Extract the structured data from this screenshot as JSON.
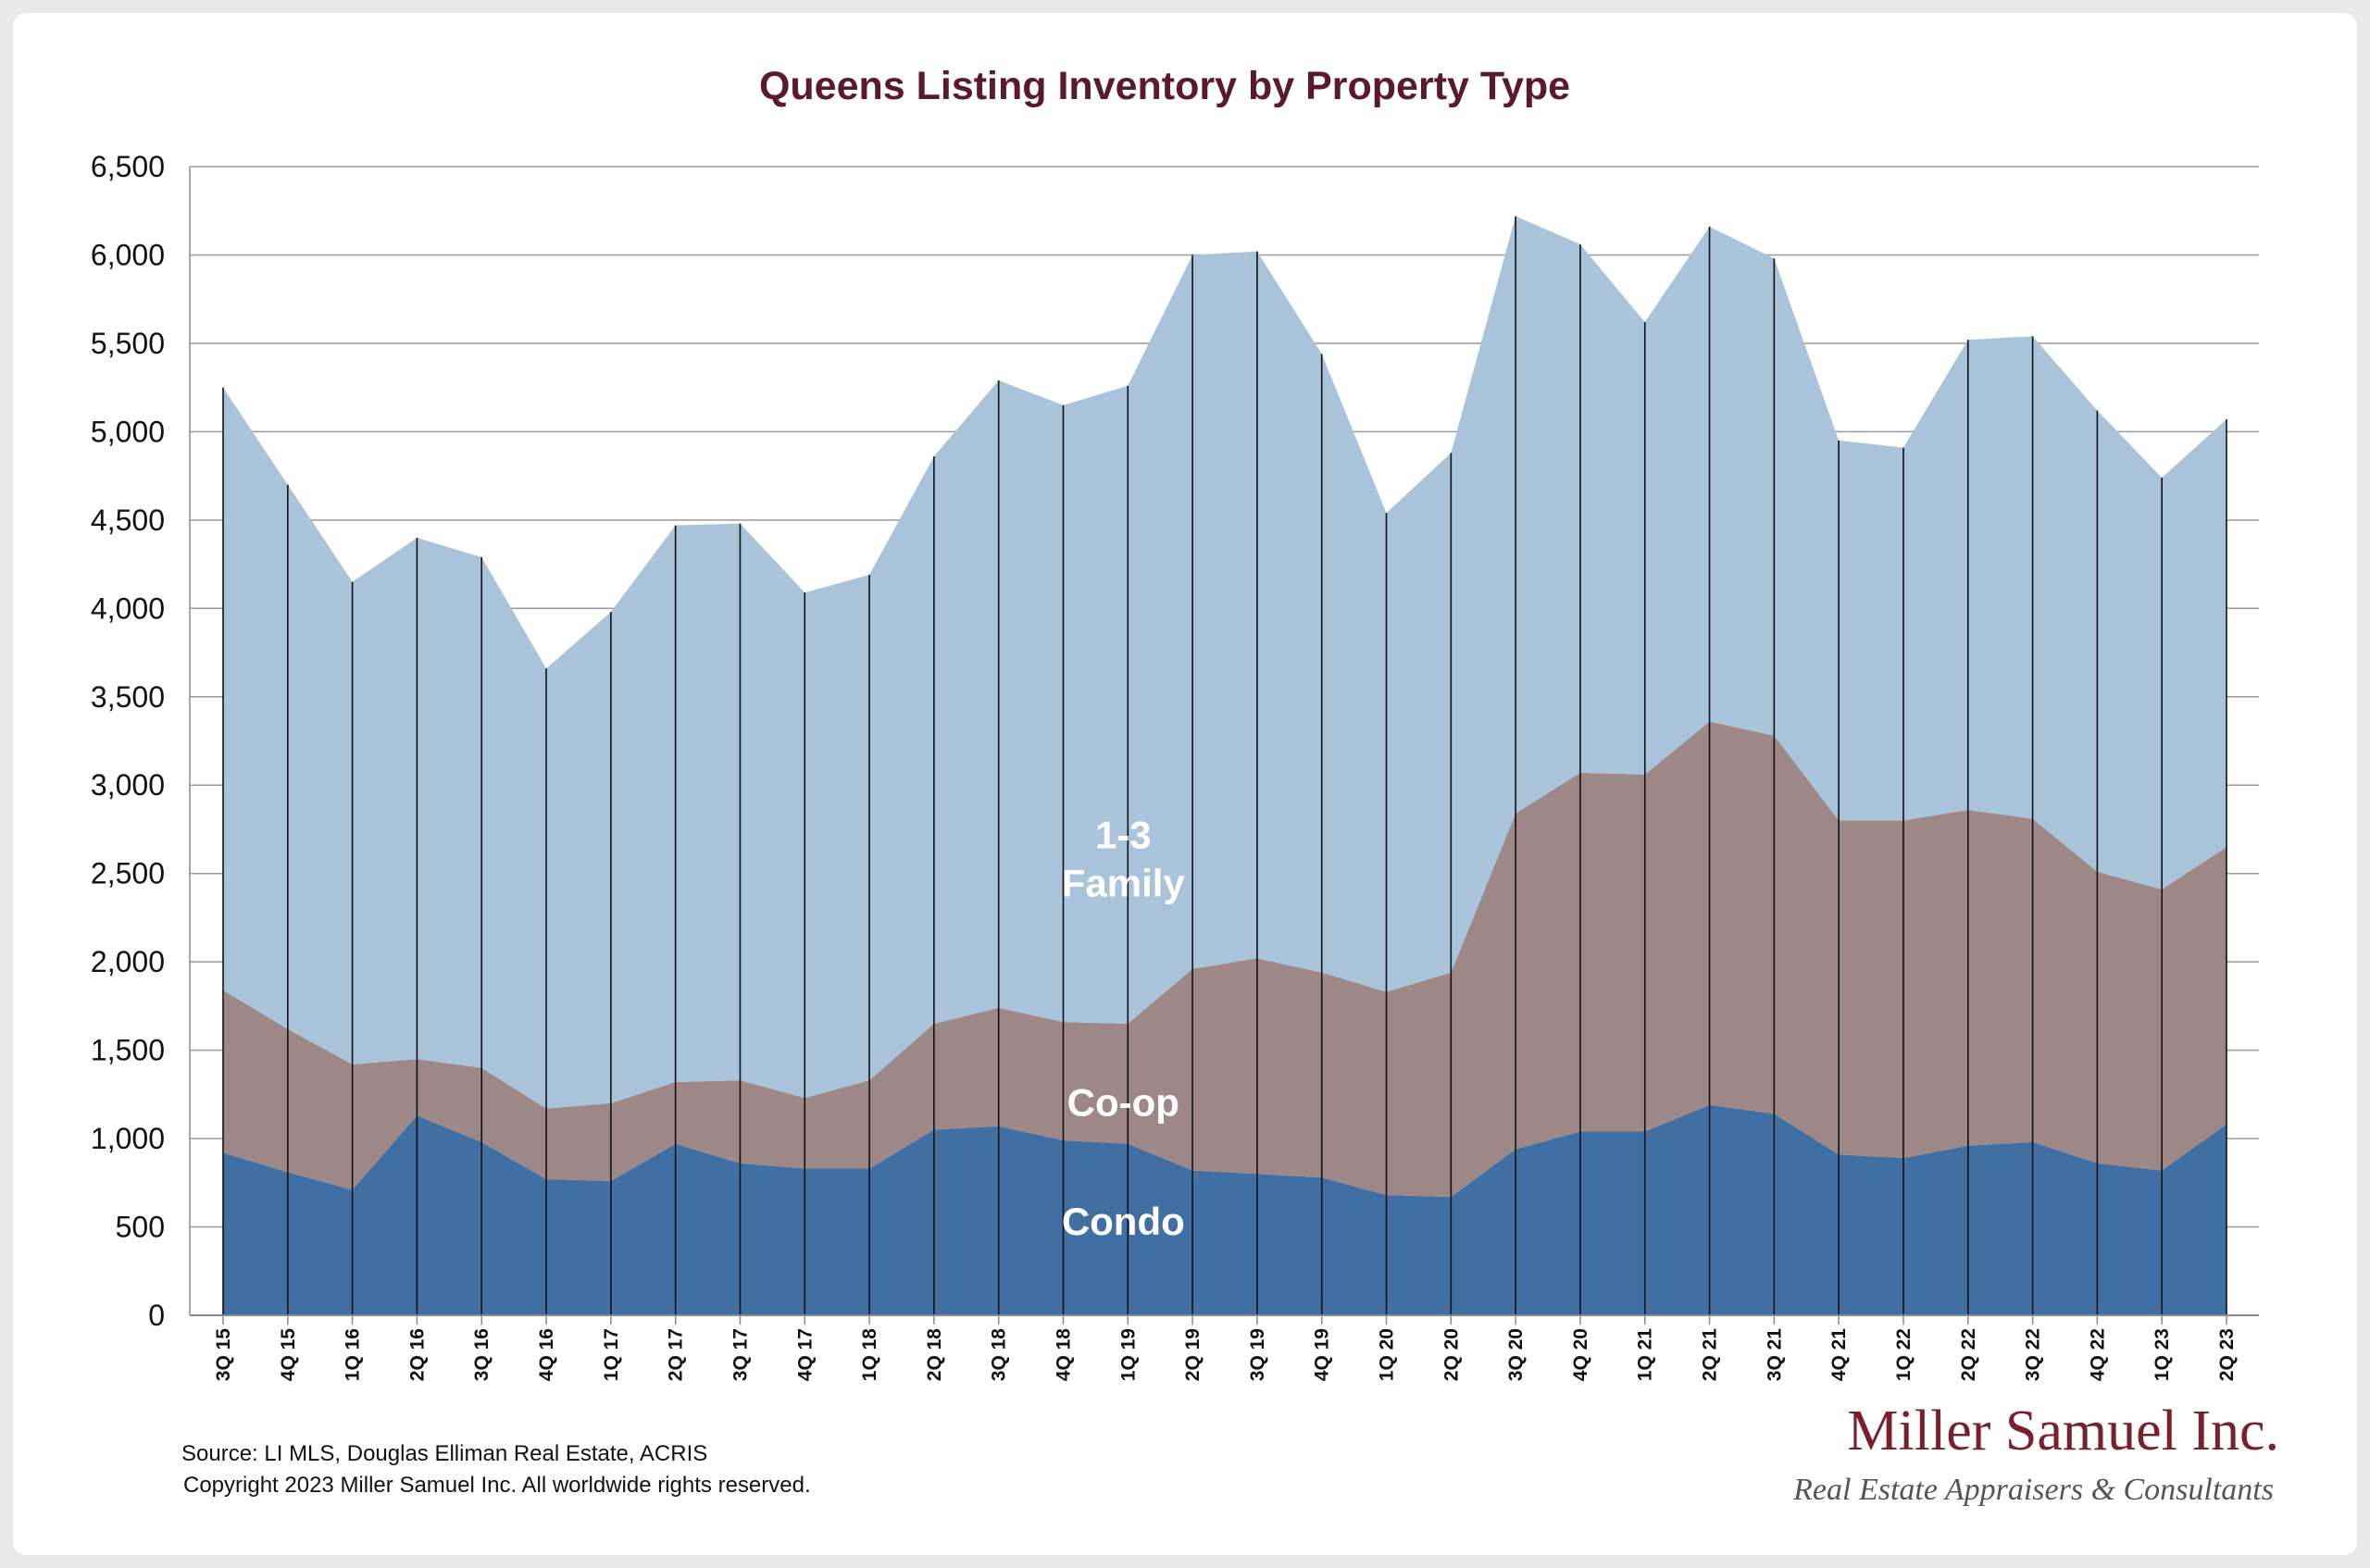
{
  "chart_data": {
    "type": "area",
    "stacked": true,
    "title": "Queens Listing Inventory by Property Type",
    "xlabel": "",
    "ylabel": "",
    "ylim": [
      0,
      6500
    ],
    "yticks": [
      0,
      500,
      1000,
      1500,
      2000,
      2500,
      3000,
      3500,
      4000,
      4500,
      5000,
      5500,
      6000,
      6500
    ],
    "ytick_labels": [
      "0",
      "500",
      "1,000",
      "1,500",
      "2,000",
      "2,500",
      "3,000",
      "3,500",
      "4,000",
      "4,500",
      "5,000",
      "5,500",
      "6,000",
      "6,500"
    ],
    "grid": true,
    "legend": "inline labels",
    "categories": [
      "3Q 15",
      "4Q 15",
      "1Q 16",
      "2Q 16",
      "3Q 16",
      "4Q 16",
      "1Q 17",
      "2Q 17",
      "3Q 17",
      "4Q 17",
      "1Q 18",
      "2Q 18",
      "3Q 18",
      "4Q 18",
      "1Q 19",
      "2Q 19",
      "3Q 19",
      "4Q 19",
      "1Q 20",
      "2Q 20",
      "3Q 20",
      "4Q 20",
      "1Q 21",
      "2Q 21",
      "3Q 21",
      "4Q 21",
      "1Q 22",
      "2Q 22",
      "3Q 22",
      "4Q 22",
      "1Q 23",
      "2Q 23"
    ],
    "series": [
      {
        "name": "Condo",
        "color": "#3f6fa3",
        "values": [
          920,
          810,
          710,
          1130,
          980,
          770,
          760,
          970,
          860,
          830,
          830,
          1050,
          1070,
          990,
          970,
          820,
          800,
          780,
          680,
          670,
          940,
          1040,
          1040,
          1190,
          1140,
          910,
          890,
          960,
          980,
          860,
          820,
          1080
        ]
      },
      {
        "name": "Co-op",
        "color": "#9e8887",
        "values": [
          920,
          810,
          710,
          320,
          420,
          400,
          440,
          350,
          470,
          400,
          500,
          600,
          670,
          670,
          680,
          1140,
          1220,
          1160,
          1150,
          1270,
          1900,
          2030,
          2020,
          2170,
          2140,
          1890,
          1910,
          1900,
          1830,
          1650,
          1590,
          1570
        ]
      },
      {
        "name": "1-3 Family",
        "color": "#a9c4da",
        "values": [
          3410,
          3080,
          2730,
          2950,
          2890,
          2490,
          2780,
          3150,
          3150,
          2860,
          2860,
          3210,
          3550,
          3490,
          3610,
          4040,
          4000,
          3500,
          2710,
          2940,
          3380,
          2990,
          2560,
          2800,
          2700,
          2150,
          2110,
          2660,
          2730,
          2610,
          2330,
          2420
        ]
      }
    ]
  },
  "source": {
    "line1": "Source: LI MLS, Douglas Elliman Real Estate, ACRIS",
    "line2": "Copyright 2023 Miller Samuel Inc.  All worldwide rights reserved."
  },
  "branding": {
    "name": "Miller Samuel Inc.",
    "tagline": "Real Estate Appraisers & Consultants"
  }
}
